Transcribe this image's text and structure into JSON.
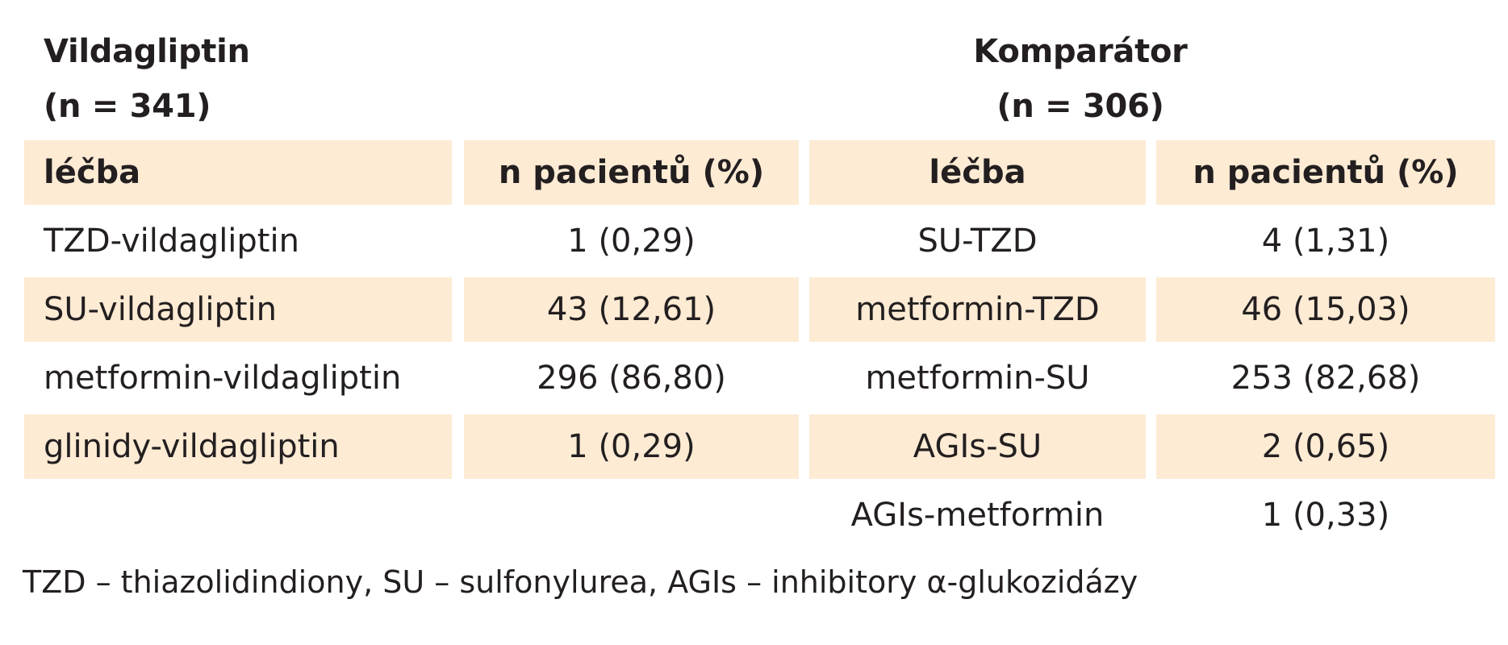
{
  "groups": {
    "vildagliptin": {
      "name": "Vildagliptin",
      "count": "(n = 341)"
    },
    "comparator": {
      "name": "Komparátor",
      "count": "(n = 306)"
    }
  },
  "table": {
    "headers": [
      "léčba",
      "n pacientů (%)",
      "léčba",
      "n pacientů (%)"
    ],
    "rows": [
      {
        "vilda_treatment": "TZD-vildagliptin",
        "vilda_n": "1 (0,29)",
        "comp_treatment": "SU-TZD",
        "comp_n": "4 (1,31)"
      },
      {
        "vilda_treatment": "SU-vildagliptin",
        "vilda_n": "43 (12,61)",
        "comp_treatment": "metformin-TZD",
        "comp_n": "46 (15,03)"
      },
      {
        "vilda_treatment": "metformin-vildagliptin",
        "vilda_n": "296 (86,80)",
        "comp_treatment": "metformin-SU",
        "comp_n": "253 (82,68)"
      },
      {
        "vilda_treatment": "glinidy-vildagliptin",
        "vilda_n": "1 (0,29)",
        "comp_treatment": "AGIs-SU",
        "comp_n": "2 (0,65)"
      },
      {
        "vilda_treatment": "",
        "vilda_n": "",
        "comp_treatment": "AGIs-metformin",
        "comp_n": "1 (0,33)"
      }
    ]
  },
  "footnote": "TZD – thiazolidindiony, SU – sulfonylurea, AGIs – inhibitory α-glukozidázy"
}
